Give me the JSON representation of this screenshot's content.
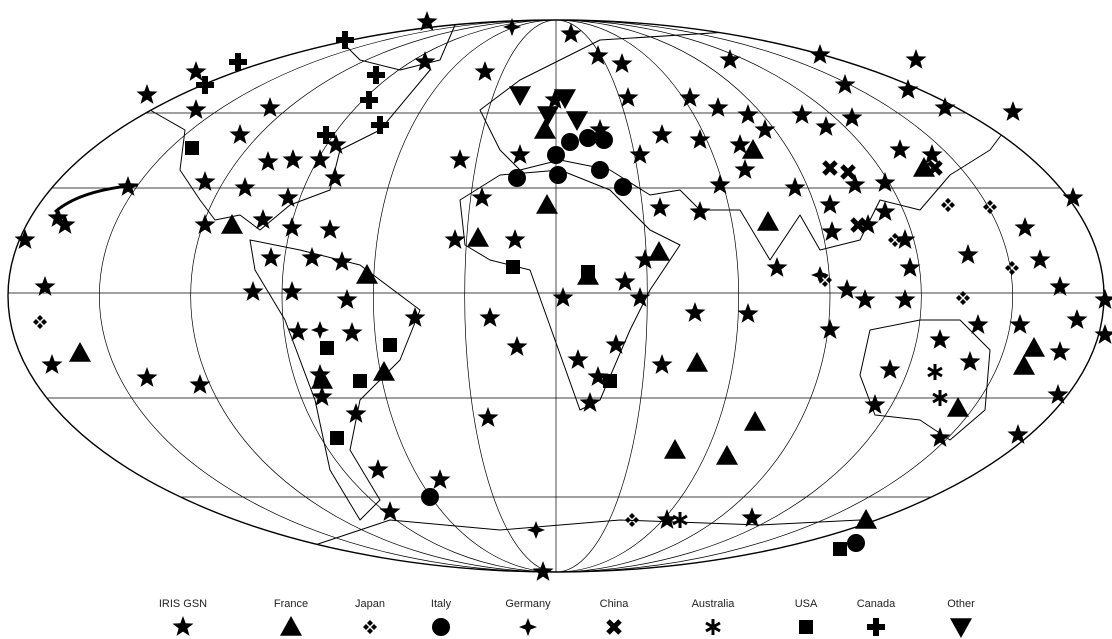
{
  "legend": [
    {
      "label": "IRIS GSN"
    },
    {
      "label": "France"
    },
    {
      "label": "Japan"
    },
    {
      "label": "Italy"
    },
    {
      "label": "Germany"
    },
    {
      "label": "China"
    },
    {
      "label": "Australia"
    },
    {
      "label": "USA"
    },
    {
      "label": "Canada"
    },
    {
      "label": "Other"
    }
  ]
}
